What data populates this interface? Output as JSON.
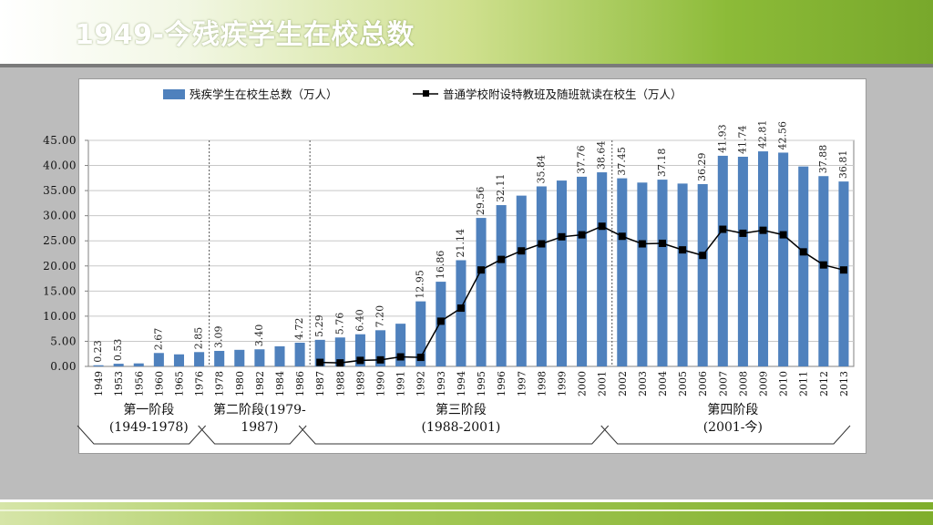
{
  "slide": {
    "title": "1949-今残疾学生在校总数"
  },
  "chart_data": {
    "type": "bar",
    "categories": [
      "1949",
      "1953",
      "1956",
      "1960",
      "1965",
      "1976",
      "1978",
      "1980",
      "1982",
      "1984",
      "1986",
      "1987",
      "1988",
      "1989",
      "1990",
      "1991",
      "1992",
      "1993",
      "1994",
      "1995",
      "1996",
      "1997",
      "1998",
      "1999",
      "2000",
      "2001",
      "2002",
      "2003",
      "2004",
      "2005",
      "2006",
      "2007",
      "2008",
      "2009",
      "2010",
      "2011",
      "2012",
      "2013"
    ],
    "series": [
      {
        "name": "残疾学生在校生总数（万人）",
        "type": "bar",
        "color": "#4f81bd",
        "values": [
          0.23,
          0.53,
          0.6,
          2.67,
          2.4,
          2.85,
          3.09,
          3.3,
          3.4,
          4.0,
          4.72,
          5.29,
          5.76,
          6.4,
          7.2,
          8.5,
          12.95,
          16.86,
          21.14,
          29.56,
          32.11,
          34.0,
          35.84,
          37.0,
          37.76,
          38.64,
          37.45,
          36.6,
          37.18,
          36.4,
          36.29,
          41.93,
          41.74,
          42.81,
          42.56,
          39.8,
          37.88,
          36.81
        ],
        "labels": [
          "0.23",
          "0.53",
          "",
          "2.67",
          "",
          "2.85",
          "3.09",
          "",
          "3.40",
          "",
          "4.72",
          "5.29",
          "5.76",
          "6.40",
          "7.20",
          "",
          "12.95",
          "16.86",
          "21.14",
          "29.56",
          "32.11",
          "",
          "35.84",
          "",
          "37.76",
          "38.64",
          "37.45",
          "",
          "37.18",
          "",
          "36.29",
          "41.93",
          "41.74",
          "42.81",
          "42.56",
          "",
          "37.88",
          "36.81"
        ]
      },
      {
        "name": "普通学校附设特教班及随班就读在校生（万人）",
        "type": "line",
        "color": "#000000",
        "values": [
          null,
          null,
          null,
          null,
          null,
          null,
          null,
          null,
          null,
          null,
          null,
          0.8,
          0.7,
          1.2,
          1.3,
          1.9,
          1.8,
          9.0,
          11.6,
          19.2,
          21.3,
          23.0,
          24.4,
          25.8,
          26.2,
          27.9,
          25.9,
          24.4,
          24.5,
          23.2,
          22.1,
          27.3,
          26.5,
          27.1,
          26.2,
          22.8,
          20.2,
          19.2
        ]
      }
    ],
    "ylim": [
      0,
      45
    ],
    "yticks": [
      "0.00",
      "5.00",
      "10.00",
      "15.00",
      "20.00",
      "25.00",
      "30.00",
      "35.00",
      "40.00",
      "45.00"
    ],
    "grid": true,
    "legend": "top",
    "phase_dividers_after": [
      "1976",
      "1986",
      "2001"
    ],
    "phases": [
      {
        "line1": "第一阶段",
        "line2": "(1949-1978)",
        "from": "1949",
        "to": "1976"
      },
      {
        "line1": "第二阶段(1979-",
        "line2": "1987)",
        "from": "1978",
        "to": "1986"
      },
      {
        "line1": "第三阶段",
        "line2": "(1988-2001)",
        "from": "1987",
        "to": "2001"
      },
      {
        "line1": "第四阶段",
        "line2": "(2001-今)",
        "from": "2002",
        "to": "2013"
      }
    ]
  }
}
